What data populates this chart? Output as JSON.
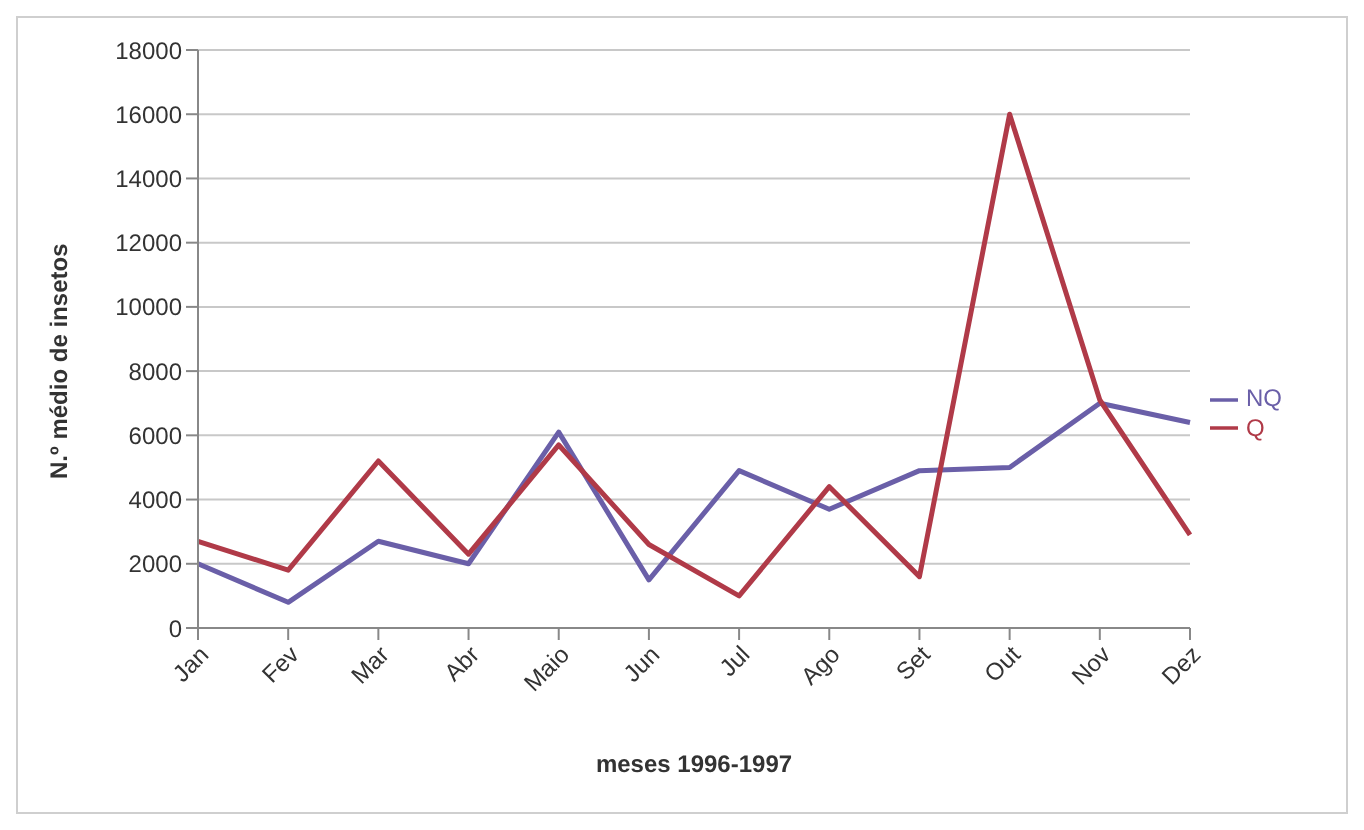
{
  "chart_data": {
    "type": "line",
    "xlabel": "meses 1996-1997",
    "ylabel": "N.º médio de insetos",
    "categories": [
      "Jan",
      "Fev",
      "Mar",
      "Abr",
      "Maio",
      "Jun",
      "Jul",
      "Ago",
      "Set",
      "Out",
      "Nov",
      "Dez"
    ],
    "series": [
      {
        "name": "NQ",
        "color": "#6a5fa8",
        "values": [
          2000,
          800,
          2700,
          2000,
          6100,
          1500,
          4900,
          3700,
          4900,
          5000,
          7000,
          6400
        ]
      },
      {
        "name": "Q",
        "color": "#b03a48",
        "values": [
          2700,
          1800,
          5200,
          2300,
          5700,
          2600,
          1000,
          4400,
          1600,
          16000,
          7100,
          2900
        ]
      }
    ],
    "ylim": [
      0,
      18000
    ],
    "yticks": [
      0,
      2000,
      4000,
      6000,
      8000,
      10000,
      12000,
      14000,
      16000,
      18000
    ],
    "grid": "y",
    "legend": "right",
    "marker": "none",
    "line_style": "solid"
  }
}
